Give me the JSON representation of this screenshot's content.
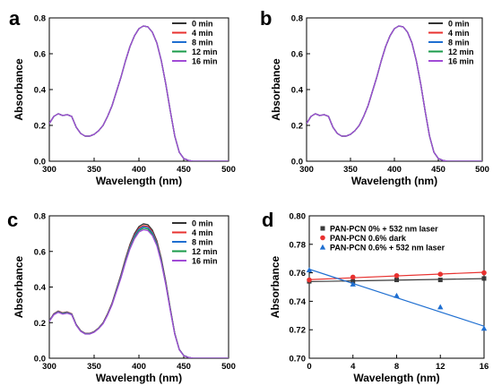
{
  "chart_data": [
    {
      "panel": "a",
      "type": "line",
      "xlabel": "Wavelength (nm)",
      "ylabel": "Absorbance",
      "xlim": [
        300,
        500
      ],
      "ylim": [
        0.0,
        0.8
      ],
      "xticks": [
        "300",
        "350",
        "400",
        "450",
        "500"
      ],
      "yticks": [
        "0.0",
        "0.2",
        "0.4",
        "0.6",
        "0.8"
      ],
      "legend_position": "top-right",
      "x": [
        300,
        305,
        310,
        315,
        320,
        325,
        330,
        335,
        340,
        345,
        350,
        355,
        360,
        365,
        370,
        375,
        380,
        385,
        390,
        395,
        400,
        405,
        410,
        415,
        420,
        425,
        430,
        435,
        440,
        445,
        450,
        455,
        460,
        470,
        480,
        490,
        500
      ],
      "series": [
        {
          "name": "0 min",
          "color": "#333333",
          "values": [
            0.21,
            0.25,
            0.265,
            0.255,
            0.26,
            0.25,
            0.19,
            0.155,
            0.14,
            0.14,
            0.15,
            0.17,
            0.2,
            0.25,
            0.31,
            0.39,
            0.47,
            0.56,
            0.64,
            0.7,
            0.74,
            0.755,
            0.75,
            0.72,
            0.66,
            0.56,
            0.43,
            0.28,
            0.14,
            0.05,
            0.015,
            0.005,
            0.0,
            0.0,
            0.0,
            0.0,
            0.0
          ]
        },
        {
          "name": "4 min",
          "color": "#e8312f",
          "values": [
            0.21,
            0.25,
            0.265,
            0.255,
            0.26,
            0.25,
            0.19,
            0.155,
            0.14,
            0.14,
            0.15,
            0.17,
            0.2,
            0.25,
            0.31,
            0.39,
            0.47,
            0.56,
            0.64,
            0.7,
            0.74,
            0.755,
            0.75,
            0.72,
            0.66,
            0.56,
            0.43,
            0.28,
            0.14,
            0.05,
            0.015,
            0.005,
            0.0,
            0.0,
            0.0,
            0.0,
            0.0
          ]
        },
        {
          "name": "8 min",
          "color": "#1f6fd1",
          "values": [
            0.21,
            0.25,
            0.265,
            0.255,
            0.26,
            0.25,
            0.19,
            0.155,
            0.14,
            0.14,
            0.15,
            0.17,
            0.2,
            0.25,
            0.31,
            0.39,
            0.47,
            0.56,
            0.64,
            0.7,
            0.74,
            0.755,
            0.75,
            0.72,
            0.66,
            0.56,
            0.43,
            0.28,
            0.14,
            0.05,
            0.015,
            0.005,
            0.0,
            0.0,
            0.0,
            0.0,
            0.0
          ]
        },
        {
          "name": "12 min",
          "color": "#1a9b4a",
          "values": [
            0.21,
            0.25,
            0.265,
            0.255,
            0.26,
            0.25,
            0.19,
            0.155,
            0.14,
            0.14,
            0.15,
            0.17,
            0.2,
            0.25,
            0.31,
            0.39,
            0.47,
            0.56,
            0.64,
            0.7,
            0.74,
            0.755,
            0.75,
            0.72,
            0.66,
            0.56,
            0.43,
            0.28,
            0.14,
            0.05,
            0.015,
            0.005,
            0.0,
            0.0,
            0.0,
            0.0,
            0.0
          ]
        },
        {
          "name": "16 min",
          "color": "#a14bd6",
          "values": [
            0.21,
            0.25,
            0.265,
            0.255,
            0.26,
            0.25,
            0.19,
            0.155,
            0.14,
            0.14,
            0.15,
            0.17,
            0.2,
            0.25,
            0.31,
            0.39,
            0.47,
            0.56,
            0.64,
            0.7,
            0.74,
            0.755,
            0.75,
            0.72,
            0.66,
            0.56,
            0.43,
            0.28,
            0.14,
            0.05,
            0.015,
            0.005,
            0.0,
            0.0,
            0.0,
            0.0,
            0.0
          ]
        }
      ]
    },
    {
      "panel": "b",
      "type": "line",
      "xlabel": "Wavelength (nm)",
      "ylabel": "Absorbance",
      "xlim": [
        300,
        500
      ],
      "ylim": [
        0.0,
        0.8
      ],
      "xticks": [
        "300",
        "350",
        "400",
        "450",
        "500"
      ],
      "yticks": [
        "0.0",
        "0.2",
        "0.4",
        "0.6",
        "0.8"
      ],
      "legend_position": "top-right",
      "x": [
        300,
        305,
        310,
        315,
        320,
        325,
        330,
        335,
        340,
        345,
        350,
        355,
        360,
        365,
        370,
        375,
        380,
        385,
        390,
        395,
        400,
        405,
        410,
        415,
        420,
        425,
        430,
        435,
        440,
        445,
        450,
        455,
        460,
        470,
        480,
        490,
        500
      ],
      "series": [
        {
          "name": "0 min",
          "color": "#333333",
          "values": [
            0.21,
            0.25,
            0.265,
            0.255,
            0.26,
            0.25,
            0.19,
            0.155,
            0.14,
            0.14,
            0.15,
            0.17,
            0.2,
            0.25,
            0.31,
            0.39,
            0.47,
            0.56,
            0.64,
            0.7,
            0.74,
            0.755,
            0.75,
            0.72,
            0.66,
            0.56,
            0.43,
            0.28,
            0.14,
            0.05,
            0.015,
            0.005,
            0.0,
            0.0,
            0.0,
            0.0,
            0.0
          ]
        },
        {
          "name": "4 min",
          "color": "#e8312f",
          "values": [
            0.21,
            0.25,
            0.265,
            0.255,
            0.26,
            0.25,
            0.19,
            0.155,
            0.14,
            0.14,
            0.15,
            0.17,
            0.2,
            0.25,
            0.31,
            0.39,
            0.47,
            0.56,
            0.64,
            0.7,
            0.74,
            0.755,
            0.75,
            0.72,
            0.66,
            0.56,
            0.43,
            0.28,
            0.14,
            0.05,
            0.015,
            0.005,
            0.0,
            0.0,
            0.0,
            0.0,
            0.0
          ]
        },
        {
          "name": "8 min",
          "color": "#1f6fd1",
          "values": [
            0.21,
            0.25,
            0.265,
            0.255,
            0.26,
            0.25,
            0.19,
            0.155,
            0.14,
            0.14,
            0.15,
            0.17,
            0.2,
            0.25,
            0.31,
            0.39,
            0.47,
            0.56,
            0.64,
            0.7,
            0.74,
            0.755,
            0.75,
            0.72,
            0.66,
            0.56,
            0.43,
            0.28,
            0.14,
            0.05,
            0.015,
            0.005,
            0.0,
            0.0,
            0.0,
            0.0,
            0.0
          ]
        },
        {
          "name": "12 min",
          "color": "#1a9b4a",
          "values": [
            0.21,
            0.25,
            0.265,
            0.255,
            0.26,
            0.25,
            0.19,
            0.155,
            0.14,
            0.14,
            0.15,
            0.17,
            0.2,
            0.25,
            0.31,
            0.39,
            0.47,
            0.56,
            0.64,
            0.7,
            0.74,
            0.755,
            0.75,
            0.72,
            0.66,
            0.56,
            0.43,
            0.28,
            0.14,
            0.05,
            0.015,
            0.005,
            0.0,
            0.0,
            0.0,
            0.0,
            0.0
          ]
        },
        {
          "name": "16 min",
          "color": "#a14bd6",
          "values": [
            0.21,
            0.25,
            0.265,
            0.255,
            0.26,
            0.25,
            0.19,
            0.155,
            0.14,
            0.14,
            0.15,
            0.17,
            0.2,
            0.25,
            0.31,
            0.39,
            0.47,
            0.56,
            0.64,
            0.7,
            0.74,
            0.755,
            0.75,
            0.72,
            0.66,
            0.56,
            0.43,
            0.28,
            0.14,
            0.05,
            0.015,
            0.005,
            0.0,
            0.0,
            0.0,
            0.0,
            0.0
          ]
        }
      ]
    },
    {
      "panel": "c",
      "type": "line",
      "xlabel": "Wavelength (nm)",
      "ylabel": "Absorbance",
      "xlim": [
        300,
        500
      ],
      "ylim": [
        0.0,
        0.8
      ],
      "xticks": [
        "300",
        "350",
        "400",
        "450",
        "500"
      ],
      "yticks": [
        "0.0",
        "0.2",
        "0.4",
        "0.6",
        "0.8"
      ],
      "legend_position": "top-right",
      "x": [
        300,
        305,
        310,
        315,
        320,
        325,
        330,
        335,
        340,
        345,
        350,
        355,
        360,
        365,
        370,
        375,
        380,
        385,
        390,
        395,
        400,
        405,
        410,
        415,
        420,
        425,
        430,
        435,
        440,
        445,
        450,
        455,
        460,
        470,
        480,
        490,
        500
      ],
      "series": [
        {
          "name": "0 min",
          "color": "#333333",
          "values": [
            0.21,
            0.25,
            0.265,
            0.255,
            0.26,
            0.25,
            0.19,
            0.155,
            0.14,
            0.14,
            0.15,
            0.17,
            0.2,
            0.25,
            0.31,
            0.39,
            0.47,
            0.56,
            0.64,
            0.7,
            0.74,
            0.755,
            0.75,
            0.72,
            0.66,
            0.56,
            0.43,
            0.28,
            0.14,
            0.05,
            0.015,
            0.005,
            0.0,
            0.0,
            0.0,
            0.0,
            0.0
          ]
        },
        {
          "name": "4 min",
          "color": "#e8312f",
          "values": [
            0.21,
            0.249,
            0.264,
            0.254,
            0.259,
            0.249,
            0.189,
            0.154,
            0.139,
            0.139,
            0.149,
            0.169,
            0.199,
            0.248,
            0.308,
            0.386,
            0.465,
            0.554,
            0.633,
            0.692,
            0.731,
            0.745,
            0.74,
            0.711,
            0.652,
            0.553,
            0.425,
            0.277,
            0.138,
            0.049,
            0.015,
            0.005,
            0.0,
            0.0,
            0.0,
            0.0,
            0.0
          ]
        },
        {
          "name": "8 min",
          "color": "#1f6fd1",
          "values": [
            0.209,
            0.247,
            0.262,
            0.252,
            0.257,
            0.247,
            0.188,
            0.153,
            0.138,
            0.138,
            0.148,
            0.168,
            0.197,
            0.246,
            0.305,
            0.383,
            0.461,
            0.549,
            0.627,
            0.686,
            0.725,
            0.739,
            0.734,
            0.705,
            0.646,
            0.548,
            0.421,
            0.274,
            0.137,
            0.049,
            0.015,
            0.005,
            0.0,
            0.0,
            0.0,
            0.0,
            0.0
          ]
        },
        {
          "name": "12 min",
          "color": "#1a9b4a",
          "values": [
            0.208,
            0.245,
            0.26,
            0.25,
            0.255,
            0.245,
            0.186,
            0.152,
            0.137,
            0.137,
            0.147,
            0.167,
            0.196,
            0.244,
            0.302,
            0.379,
            0.456,
            0.543,
            0.621,
            0.679,
            0.717,
            0.731,
            0.726,
            0.697,
            0.639,
            0.542,
            0.416,
            0.271,
            0.136,
            0.048,
            0.015,
            0.005,
            0.0,
            0.0,
            0.0,
            0.0,
            0.0
          ]
        },
        {
          "name": "16 min",
          "color": "#a14bd6",
          "values": [
            0.207,
            0.244,
            0.258,
            0.248,
            0.253,
            0.244,
            0.185,
            0.151,
            0.136,
            0.136,
            0.146,
            0.166,
            0.194,
            0.242,
            0.3,
            0.376,
            0.452,
            0.538,
            0.614,
            0.671,
            0.709,
            0.722,
            0.717,
            0.689,
            0.632,
            0.536,
            0.412,
            0.268,
            0.134,
            0.048,
            0.014,
            0.005,
            0.0,
            0.0,
            0.0,
            0.0,
            0.0
          ]
        }
      ]
    },
    {
      "panel": "d",
      "type": "scatter",
      "xlabel": "Wavelength (nm)",
      "ylabel": "Absorbance",
      "xlim": [
        0,
        16
      ],
      "ylim": [
        0.7,
        0.8
      ],
      "xticks": [
        "0",
        "4",
        "8",
        "12",
        "16"
      ],
      "yticks": [
        "0.70",
        "0.72",
        "0.74",
        "0.76",
        "0.78",
        "0.80"
      ],
      "legend_position": "top-right",
      "x": [
        0,
        4,
        8,
        12,
        16
      ],
      "series": [
        {
          "name": "PAN-PCN 0% + 532 nm laser",
          "color": "#3a3a3a",
          "marker": "square",
          "values": [
            0.754,
            0.754,
            0.755,
            0.755,
            0.756
          ],
          "fit": [
            0.7538,
            0.7559
          ]
        },
        {
          "name": "PAN-PCN 0.6% dark",
          "color": "#e8312f",
          "marker": "circle",
          "values": [
            0.755,
            0.757,
            0.758,
            0.759,
            0.76
          ],
          "fit": [
            0.7552,
            0.7604
          ]
        },
        {
          "name": "PAN-PCN 0.6% + 532 nm laser",
          "color": "#1f6fd1",
          "marker": "triangle",
          "values": [
            0.762,
            0.752,
            0.744,
            0.736,
            0.721
          ],
          "fit": [
            0.7625,
            0.7225
          ]
        }
      ]
    }
  ]
}
